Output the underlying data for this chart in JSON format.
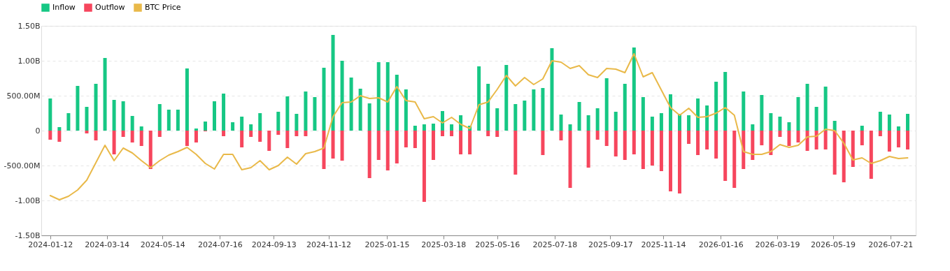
{
  "chart_data": {
    "type": "bar",
    "x": [
      "2024-01-12",
      "2024-01-22",
      "2024-02-01",
      "2024-02-11",
      "2024-02-21",
      "2024-03-02",
      "2024-03-12",
      "2024-03-22",
      "2024-04-01",
      "2024-04-11",
      "2024-04-21",
      "2024-05-01",
      "2024-05-11",
      "2024-05-21",
      "2024-05-31",
      "2024-06-10",
      "2024-06-20",
      "2024-06-30",
      "2024-07-10",
      "2024-07-20",
      "2024-07-30",
      "2024-08-09",
      "2024-08-19",
      "2024-08-29",
      "2024-09-08",
      "2024-09-18",
      "2024-09-28",
      "2024-10-08",
      "2024-10-18",
      "2024-10-28",
      "2024-11-07",
      "2024-11-17",
      "2024-11-27",
      "2024-12-07",
      "2024-12-17",
      "2024-12-27",
      "2025-01-06",
      "2025-01-16",
      "2025-01-26",
      "2025-02-05",
      "2025-02-15",
      "2025-02-25",
      "2025-03-07",
      "2025-03-17",
      "2025-03-27",
      "2025-04-06",
      "2025-04-16",
      "2025-04-26",
      "2025-05-06",
      "2025-05-16",
      "2025-05-26",
      "2025-06-05",
      "2025-06-15",
      "2025-06-25",
      "2025-07-05",
      "2025-07-15",
      "2025-07-25",
      "2025-08-04",
      "2025-08-14",
      "2025-08-24",
      "2025-09-03",
      "2025-09-13",
      "2025-09-23",
      "2025-10-03",
      "2025-10-13",
      "2025-10-23",
      "2025-11-02",
      "2025-11-12",
      "2025-11-22",
      "2025-12-02",
      "2025-12-12",
      "2025-12-22",
      "2026-01-01",
      "2026-01-11",
      "2026-01-21",
      "2026-01-31",
      "2026-02-10",
      "2026-02-20",
      "2026-03-02",
      "2026-03-12",
      "2026-03-22",
      "2026-04-01",
      "2026-04-11",
      "2026-04-21",
      "2026-05-01",
      "2026-05-11",
      "2026-05-21",
      "2026-05-31",
      "2026-06-10",
      "2026-06-20",
      "2026-06-30",
      "2026-07-10",
      "2026-07-20",
      "2026-07-30",
      "2026-08-09"
    ],
    "stacked": true,
    "series": [
      {
        "name": "Inflow",
        "type": "bar",
        "color": "#16c784",
        "values": [
          460000000,
          50000000,
          250000000,
          640000000,
          340000000,
          670000000,
          1040000000,
          440000000,
          420000000,
          210000000,
          60000000,
          null,
          380000000,
          300000000,
          300000000,
          890000000,
          30000000,
          130000000,
          420000000,
          530000000,
          120000000,
          200000000,
          90000000,
          250000000,
          null,
          270000000,
          490000000,
          240000000,
          560000000,
          480000000,
          900000000,
          1370000000,
          1000000000,
          760000000,
          600000000,
          390000000,
          980000000,
          980000000,
          800000000,
          590000000,
          70000000,
          90000000,
          100000000,
          280000000,
          90000000,
          220000000,
          70000000,
          920000000,
          670000000,
          320000000,
          940000000,
          380000000,
          430000000,
          590000000,
          610000000,
          1180000000,
          230000000,
          90000000,
          410000000,
          220000000,
          320000000,
          750000000,
          270000000,
          670000000,
          1190000000,
          480000000,
          200000000,
          250000000,
          520000000,
          240000000,
          220000000,
          460000000,
          360000000,
          700000000,
          840000000,
          null,
          560000000,
          90000000,
          510000000,
          250000000,
          200000000,
          120000000,
          480000000,
          670000000,
          340000000,
          630000000,
          140000000,
          null,
          null,
          70000000,
          null,
          270000000,
          230000000,
          60000000,
          240000000
        ]
      },
      {
        "name": "Outflow",
        "type": "bar",
        "color": "#f6465d",
        "values": [
          -130000000,
          -160000000,
          null,
          null,
          -40000000,
          -140000000,
          null,
          -340000000,
          -90000000,
          -170000000,
          -220000000,
          -550000000,
          -90000000,
          null,
          null,
          -220000000,
          -170000000,
          -10000000,
          null,
          -80000000,
          null,
          -240000000,
          -90000000,
          -160000000,
          -290000000,
          -60000000,
          -250000000,
          -80000000,
          -80000000,
          null,
          -550000000,
          -400000000,
          -430000000,
          null,
          null,
          -680000000,
          -420000000,
          -570000000,
          -470000000,
          -240000000,
          -250000000,
          -1020000000,
          -420000000,
          -80000000,
          -80000000,
          -340000000,
          -340000000,
          null,
          -80000000,
          -90000000,
          null,
          -630000000,
          null,
          null,
          -350000000,
          null,
          -140000000,
          -820000000,
          null,
          -530000000,
          -130000000,
          -220000000,
          -370000000,
          -420000000,
          -340000000,
          -550000000,
          -500000000,
          -580000000,
          -870000000,
          -900000000,
          -190000000,
          -350000000,
          -270000000,
          -400000000,
          -720000000,
          -820000000,
          -550000000,
          -420000000,
          -210000000,
          -350000000,
          -90000000,
          -220000000,
          -170000000,
          -290000000,
          -270000000,
          -270000000,
          -630000000,
          -740000000,
          -520000000,
          -210000000,
          -690000000,
          -80000000,
          -300000000,
          -240000000,
          -270000000
        ]
      },
      {
        "name": "BTC Price",
        "type": "line",
        "color": "#e9b949",
        "values": [
          -930000000,
          -990000000,
          -940000000,
          -850000000,
          -710000000,
          -460000000,
          -210000000,
          -430000000,
          -250000000,
          -320000000,
          -430000000,
          -530000000,
          -430000000,
          -350000000,
          -300000000,
          -240000000,
          -340000000,
          -470000000,
          -550000000,
          -340000000,
          -340000000,
          -560000000,
          -530000000,
          -430000000,
          -560000000,
          -500000000,
          -380000000,
          -480000000,
          -330000000,
          -300000000,
          -250000000,
          200000000,
          400000000,
          410000000,
          500000000,
          460000000,
          470000000,
          410000000,
          630000000,
          430000000,
          410000000,
          170000000,
          200000000,
          110000000,
          190000000,
          90000000,
          30000000,
          370000000,
          410000000,
          590000000,
          790000000,
          640000000,
          760000000,
          660000000,
          740000000,
          1000000000,
          980000000,
          890000000,
          930000000,
          800000000,
          760000000,
          890000000,
          880000000,
          830000000,
          1100000000,
          770000000,
          830000000,
          580000000,
          330000000,
          220000000,
          320000000,
          190000000,
          200000000,
          250000000,
          330000000,
          220000000,
          -300000000,
          -340000000,
          -340000000,
          -300000000,
          -200000000,
          -240000000,
          -210000000,
          -90000000,
          -80000000,
          20000000,
          0,
          -180000000,
          -420000000,
          -390000000,
          -470000000,
          -430000000,
          -370000000,
          -400000000,
          -390000000
        ]
      }
    ],
    "xlim": [
      "2024-01-06",
      "2026-08-14"
    ],
    "xticks": [
      "2024-01-12",
      "2024-03-14",
      "2024-05-14",
      "2024-07-16",
      "2024-09-13",
      "2024-11-12",
      "2025-01-15",
      "2025-03-18",
      "2025-05-16",
      "2025-07-18",
      "2025-09-17",
      "2025-11-14",
      "2026-01-16",
      "2026-03-19",
      "2026-05-19",
      "2026-07-21"
    ],
    "ylim": [
      -1500000000,
      1500000000
    ],
    "yticks": [
      {
        "value": -1500000000,
        "label": "-1.50B"
      },
      {
        "value": -1000000000,
        "label": "-1.00B"
      },
      {
        "value": -500000000,
        "label": "-500.00M"
      },
      0,
      {
        "value": 500000000,
        "label": "500.00M"
      },
      {
        "value": 1000000000,
        "label": "1.00B"
      },
      {
        "value": 1500000000,
        "label": "1.50B"
      }
    ],
    "grid": "y",
    "legend": "top",
    "marker": "none",
    "line_style": "solid"
  }
}
